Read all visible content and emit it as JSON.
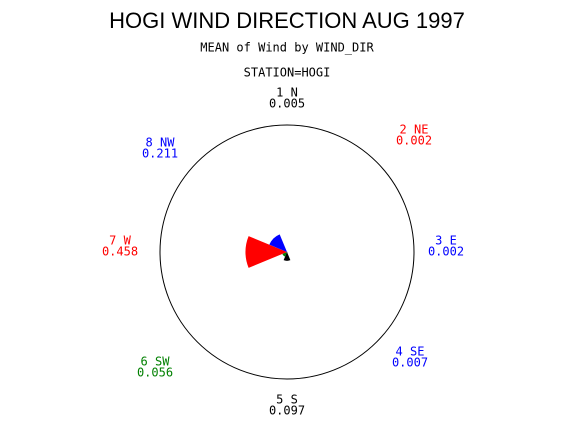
{
  "chart_data": {
    "type": "star",
    "title": "HOGI WIND DIRECTION AUG 1997",
    "subtitle": "MEAN of Wind by WIND_DIR",
    "station": "STATION=HOGI",
    "categories": [
      "1 N",
      "2 NE",
      "3 E",
      "4 SE",
      "5 S",
      "6 SW",
      "7 W",
      "8 NW"
    ],
    "values": [
      0.005,
      0.002,
      0.002,
      0.007,
      0.097,
      0.056,
      0.458,
      0.211
    ],
    "colors": [
      "#000000",
      "#ff0000",
      "#0000ff",
      "#0000ff",
      "#000000",
      "#008000",
      "#ff0000",
      "#0000ff"
    ],
    "rlim": [
      0,
      1.4
    ]
  }
}
